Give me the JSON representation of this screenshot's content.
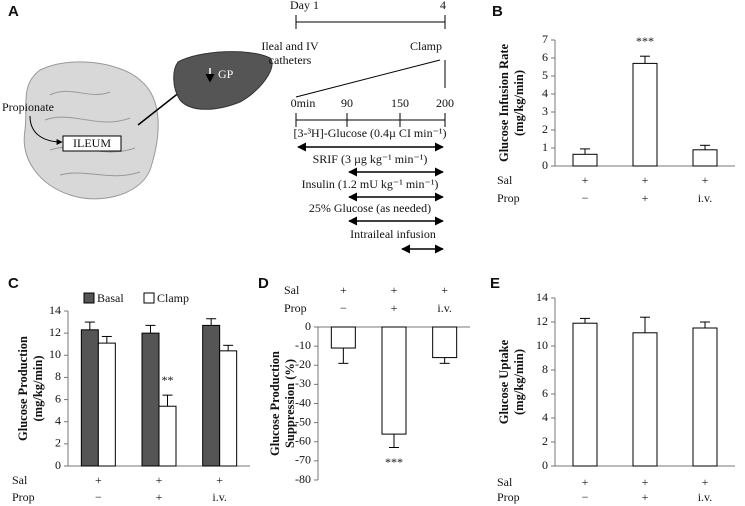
{
  "panels": {
    "A": {
      "label": "A",
      "day_start": "Day 1",
      "day_end": "4",
      "catheters": [
        "Ileal and IV",
        "catheters"
      ],
      "clamp": "Clamp",
      "times": [
        "0min",
        "90",
        "150",
        "200"
      ],
      "infusions": [
        "[3-³H]-Glucose (0.4µ CI min⁻¹)",
        "SRIF (3 µg kg⁻¹ min⁻¹)",
        "Insulin (1.2 mU kg⁻¹ min⁻¹)",
        "25% Glucose (as needed)",
        "Intraileal infusion"
      ],
      "propionate": "Propionate",
      "ileum": "ILEUM",
      "gp": "GP"
    }
  },
  "chart_data": [
    {
      "type": "bar",
      "label": "B",
      "ylabel": [
        "Glucose Infusion Rate",
        "(mg/kg/min)"
      ],
      "ylim": [
        0,
        7
      ],
      "yticks": [
        0,
        1,
        2,
        3,
        4,
        5,
        6,
        7
      ],
      "series": [
        {
          "color": "#ffffff",
          "values": [
            0.65,
            5.7,
            0.9
          ],
          "errors": [
            0.3,
            0.4,
            0.25
          ]
        }
      ],
      "annotations": [
        {
          "text": "***",
          "series": 0,
          "index": 1
        }
      ],
      "group_rows": [
        {
          "name": "Sal",
          "values": [
            "+",
            "+",
            "+"
          ]
        },
        {
          "name": "Prop",
          "values": [
            "−",
            "+",
            "i.v."
          ]
        }
      ]
    },
    {
      "type": "bar",
      "label": "C",
      "ylabel": [
        "Glucose Production",
        "(mg/kg/min)"
      ],
      "ylim": [
        0,
        14
      ],
      "yticks": [
        0,
        2,
        4,
        6,
        8,
        10,
        12,
        14
      ],
      "legend": "top",
      "series": [
        {
          "name": "Basal",
          "color": "#555555",
          "values": [
            12.3,
            12.0,
            12.7
          ],
          "errors": [
            0.7,
            0.7,
            0.6
          ]
        },
        {
          "name": "Clamp",
          "color": "#ffffff",
          "values": [
            11.1,
            5.4,
            10.4
          ],
          "errors": [
            0.6,
            1.0,
            0.5
          ]
        }
      ],
      "annotations": [
        {
          "text": "**",
          "series": 1,
          "index": 1
        }
      ],
      "group_rows": [
        {
          "name": "Sal",
          "values": [
            "+",
            "+",
            "+"
          ]
        },
        {
          "name": "Prop",
          "values": [
            "−",
            "+",
            "i.v."
          ]
        }
      ]
    },
    {
      "type": "bar",
      "label": "D",
      "ylabel": [
        "Glucose Production",
        "Suppression (%)"
      ],
      "ylim": [
        -80,
        0
      ],
      "yticks": [
        0,
        -10,
        -20,
        -30,
        -40,
        -50,
        -60,
        -70,
        -80
      ],
      "series": [
        {
          "color": "#ffffff",
          "values": [
            -11,
            -56,
            -16
          ],
          "errors": [
            8,
            7,
            3
          ]
        }
      ],
      "annotations": [
        {
          "text": "***",
          "series": 0,
          "index": 1
        }
      ],
      "group_rows": [
        {
          "name": "Sal",
          "values": [
            "+",
            "+",
            "+"
          ]
        },
        {
          "name": "Prop",
          "values": [
            "−",
            "+",
            "i.v."
          ]
        }
      ]
    },
    {
      "type": "bar",
      "label": "E",
      "ylabel": [
        "Glucose Uptake",
        "(mg/kg/min)"
      ],
      "ylim": [
        0,
        14
      ],
      "yticks": [
        0,
        2,
        4,
        6,
        8,
        10,
        12,
        14
      ],
      "series": [
        {
          "color": "#ffffff",
          "values": [
            11.9,
            11.1,
            11.5
          ],
          "errors": [
            0.4,
            1.3,
            0.5
          ]
        }
      ],
      "group_rows": [
        {
          "name": "Sal",
          "values": [
            "+",
            "+",
            "+"
          ]
        },
        {
          "name": "Prop",
          "values": [
            "−",
            "+",
            "i.v."
          ]
        }
      ]
    }
  ]
}
